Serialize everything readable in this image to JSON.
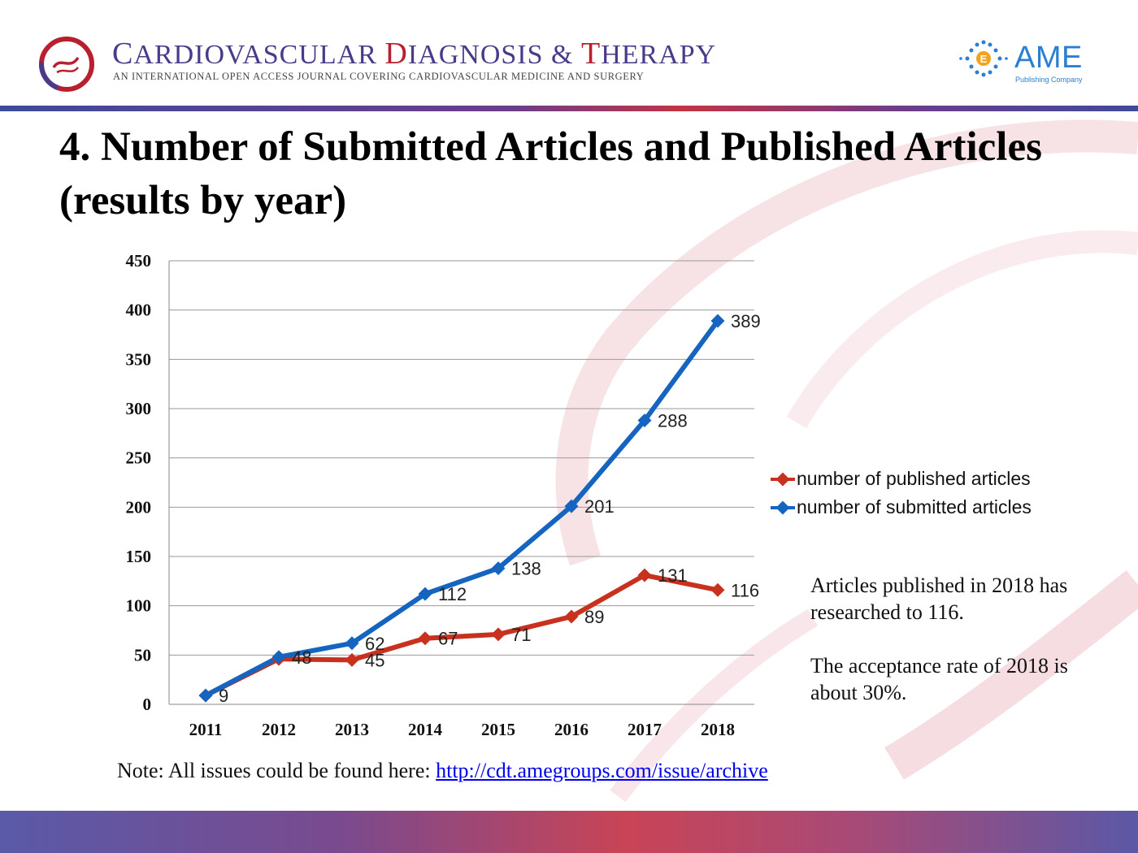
{
  "header": {
    "journal_title_c": "C",
    "journal_title_rest1": "ARDIOVASCULAR ",
    "journal_title_d": "D",
    "journal_title_rest2": "IAGNOSIS & ",
    "journal_title_t": "T",
    "journal_title_rest3": "HERAPY",
    "journal_subtitle": "An international open access journal covering cardiovascular medicine and surgery",
    "publisher_name": "AME",
    "publisher_sub": "Publishing Company",
    "publisher_badge": "E"
  },
  "title": "4. Number of Submitted Articles and Published Articles (results by year)",
  "legend": {
    "published": "number of published articles",
    "submitted": "number of submitted articles"
  },
  "notes": {
    "line1": "Articles published in 2018 has researched to 116.",
    "line2": "The acceptance rate of 2018 is about 30%."
  },
  "footer": {
    "prefix": "Note: All issues could be found here: ",
    "link": "http://cdt.amegroups.com/issue/archive"
  },
  "colors": {
    "published": "#c8311e",
    "submitted": "#1565c0",
    "brand_purple": "#4a3a8a",
    "brand_red": "#b8202f",
    "ame_blue": "#2a7fd0"
  },
  "chart_data": {
    "type": "line",
    "categories": [
      "2011",
      "2012",
      "2013",
      "2014",
      "2015",
      "2016",
      "2017",
      "2018"
    ],
    "series": [
      {
        "name": "number of published articles",
        "values": [
          9,
          46,
          45,
          67,
          71,
          89,
          131,
          116
        ]
      },
      {
        "name": "number of submitted articles",
        "values": [
          9,
          48,
          62,
          112,
          138,
          201,
          288,
          389
        ]
      }
    ],
    "ylim": [
      0,
      450
    ],
    "yticks": [
      0,
      50,
      100,
      150,
      200,
      250,
      300,
      350,
      400,
      450
    ],
    "grid": true,
    "legend_position": "right",
    "data_labels_published": [
      "",
      "",
      "45",
      "67",
      "71",
      "89",
      "131",
      "116"
    ],
    "data_labels_submitted": [
      "9",
      "48",
      "62",
      "112",
      "138",
      "201",
      "288",
      "389"
    ]
  }
}
